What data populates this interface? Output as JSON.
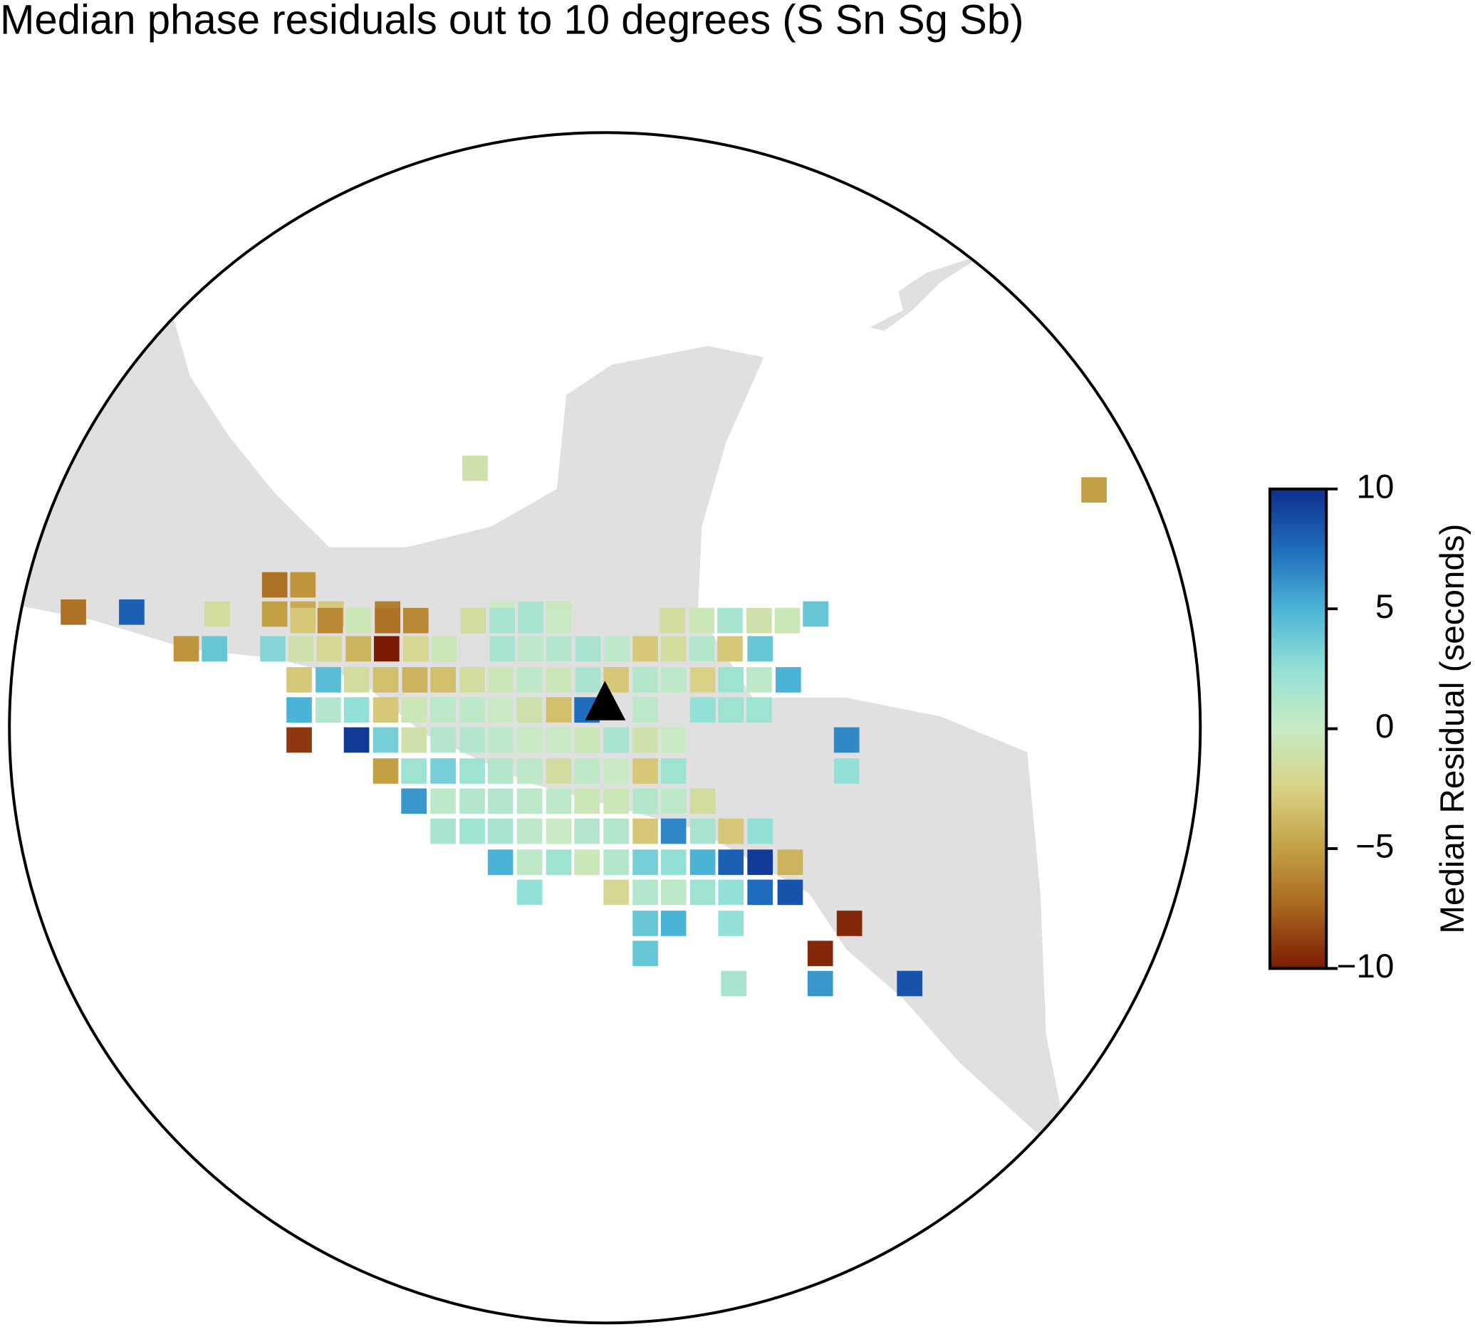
{
  "chart_data": {
    "type": "heatmap",
    "title": "Median phase residuals out to 10 degrees (S Sn Sg Sb)",
    "colorbar_label": "Median Residual (seconds)",
    "clim": [
      -10,
      10
    ],
    "cticks": [
      {
        "value": -10,
        "label": "−10"
      },
      {
        "value": -5,
        "label": "−5"
      },
      0,
      5,
      10
    ],
    "colormap": [
      "#7b1a04",
      "#a8651e",
      "#c3a044",
      "#d9d285",
      "#c8ebc4",
      "#93e0d6",
      "#4ab4d6",
      "#1f6cbc",
      "#0d2e8e"
    ],
    "values": [
      -1,
      -5,
      -7,
      -5.5,
      -1.5,
      -5,
      -4.5,
      -3,
      -6.5,
      0,
      1.5,
      -0.5,
      4,
      -7,
      8,
      -3,
      -6,
      -0.5,
      -7,
      -6,
      -1.5,
      1.5,
      1.5,
      0,
      -1.5,
      -0.5,
      1.5,
      -1,
      -0.5,
      -5.5,
      4,
      3,
      -1,
      -2,
      -4,
      -10,
      -2,
      -0.5,
      1.5,
      0.5,
      1,
      1.5,
      0.5,
      -3,
      -1.5,
      1,
      -3,
      4,
      -3,
      4.5,
      -1.5,
      -3.5,
      -4,
      -3.5,
      -1.5,
      -0.5,
      0.5,
      -0.5,
      1.5,
      -3,
      1,
      0.5,
      -2.5,
      2,
      0.5,
      5,
      5,
      1,
      2.5,
      -3,
      -0.5,
      0.5,
      0.5,
      0,
      -1,
      -3.5,
      7.5,
      0.5,
      2.5,
      2,
      2,
      -9,
      9.5,
      3.5,
      -1,
      1,
      1,
      0.5,
      0,
      0,
      -0.5,
      1.5,
      -1,
      0,
      6.5,
      -5,
      2,
      3.5,
      2,
      1,
      0.5,
      -1.5,
      0.5,
      0,
      -3,
      2,
      2.5,
      6,
      0.5,
      1,
      1,
      0.5,
      0.5,
      -0.5,
      -0.5,
      1,
      0.5,
      -1.5,
      1.5,
      2,
      1.5,
      0.5,
      0,
      1,
      1,
      -3,
      6.5,
      1.5,
      -3,
      2.5,
      5,
      0.5,
      2,
      -0.5,
      1,
      3.5,
      2.5,
      5,
      8,
      9.5,
      -4,
      2.5,
      -2,
      1,
      0.5,
      2,
      2.5,
      7.5,
      8.5,
      4,
      5,
      2.5,
      -9.5,
      4,
      -9.5,
      1.5,
      6,
      8.5
    ]
  }
}
